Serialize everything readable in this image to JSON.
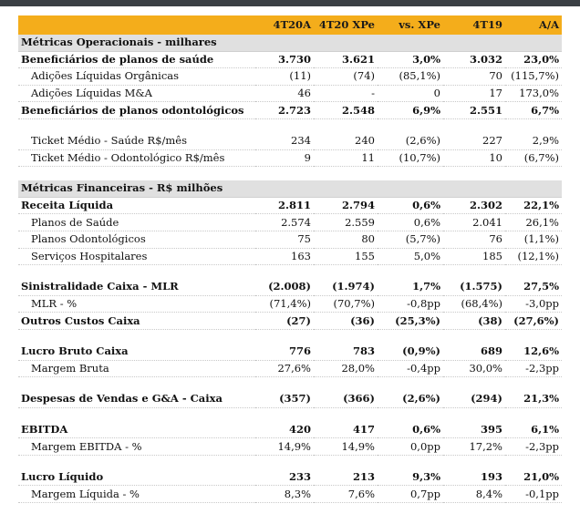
{
  "header": {
    "label": "",
    "cols": [
      "4T20A",
      "4T20 XPe",
      "vs. XPe",
      "4T19",
      "A/A"
    ]
  },
  "rows": [
    {
      "kind": "section",
      "label": "Métricas Operacionais - milhares"
    },
    {
      "kind": "bold",
      "label": "Beneficiários de planos de saúde",
      "values": [
        "3.730",
        "3.621",
        "3,0%",
        "3.032",
        "23,0%"
      ]
    },
    {
      "kind": "sub",
      "label": "Adições Líquidas Orgânicas",
      "values": [
        "(11)",
        "(74)",
        "(85,1%)",
        "70",
        "(115,7%)"
      ]
    },
    {
      "kind": "sub",
      "label": "Adições Líquidas M&A",
      "values": [
        "46",
        "-",
        "0",
        "17",
        "173,0%"
      ]
    },
    {
      "kind": "bold",
      "label": "Beneficiários de planos odontológicos",
      "values": [
        "2.723",
        "2.548",
        "6,9%",
        "2.551",
        "6,7%"
      ]
    },
    {
      "kind": "spacer"
    },
    {
      "kind": "sub",
      "label": "Ticket Médio - Saúde R$/mês",
      "values": [
        "234",
        "240",
        "(2,6%)",
        "227",
        "2,9%"
      ]
    },
    {
      "kind": "sub",
      "label": "Ticket Médio - Odontológico R$/mês",
      "values": [
        "9",
        "11",
        "(10,7%)",
        "10",
        "(6,7%)"
      ]
    },
    {
      "kind": "spacer"
    },
    {
      "kind": "section",
      "label": "Métricas Financeiras - R$ milhões"
    },
    {
      "kind": "bold",
      "label": "Receita Líquida",
      "values": [
        "2.811",
        "2.794",
        "0,6%",
        "2.302",
        "22,1%"
      ]
    },
    {
      "kind": "sub",
      "label": "Planos de Saúde",
      "values": [
        "2.574",
        "2.559",
        "0,6%",
        "2.041",
        "26,1%"
      ]
    },
    {
      "kind": "sub",
      "label": "Planos Odontológicos",
      "values": [
        "75",
        "80",
        "(5,7%)",
        "76",
        "(1,1%)"
      ]
    },
    {
      "kind": "sub",
      "label": "Serviços Hospitalares",
      "values": [
        "163",
        "155",
        "5,0%",
        "185",
        "(12,1%)"
      ]
    },
    {
      "kind": "spacer"
    },
    {
      "kind": "bold",
      "label": "Sinistralidade Caixa - MLR",
      "values": [
        "(2.008)",
        "(1.974)",
        "1,7%",
        "(1.575)",
        "27,5%"
      ]
    },
    {
      "kind": "sub",
      "label": "MLR - %",
      "values": [
        "(71,4%)",
        "(70,7%)",
        "-0,8pp",
        "(68,4%)",
        "-3,0pp"
      ]
    },
    {
      "kind": "bold",
      "label": "Outros Custos Caixa",
      "values": [
        "(27)",
        "(36)",
        "(25,3%)",
        "(38)",
        "(27,6%)"
      ]
    },
    {
      "kind": "spacer"
    },
    {
      "kind": "bold",
      "label": "Lucro Bruto Caixa",
      "values": [
        "776",
        "783",
        "(0,9%)",
        "689",
        "12,6%"
      ]
    },
    {
      "kind": "sub",
      "label": "Margem Bruta",
      "values": [
        "27,6%",
        "28,0%",
        "-0,4pp",
        "30,0%",
        "-2,3pp"
      ]
    },
    {
      "kind": "spacer"
    },
    {
      "kind": "bold",
      "label": "Despesas de Vendas e G&A - Caixa",
      "values": [
        "(357)",
        "(366)",
        "(2,6%)",
        "(294)",
        "21,3%"
      ]
    },
    {
      "kind": "spacer"
    },
    {
      "kind": "bold",
      "label": "EBITDA",
      "values": [
        "420",
        "417",
        "0,6%",
        "395",
        "6,1%"
      ]
    },
    {
      "kind": "sub",
      "label": "Margem EBITDA - %",
      "values": [
        "14,9%",
        "14,9%",
        "0,0pp",
        "17,2%",
        "-2,3pp"
      ]
    },
    {
      "kind": "spacer"
    },
    {
      "kind": "bold",
      "label": "Lucro Líquido",
      "values": [
        "233",
        "213",
        "9,3%",
        "193",
        "21,0%"
      ]
    },
    {
      "kind": "sub",
      "label": "Margem Líquida - %",
      "values": [
        "8,3%",
        "7,6%",
        "0,7pp",
        "8,4%",
        "-0,1pp"
      ]
    }
  ],
  "colors": {
    "header_bg": "#f4ad1b",
    "section_bg": "#e0e0e0",
    "top_bar": "#3a3f44"
  }
}
